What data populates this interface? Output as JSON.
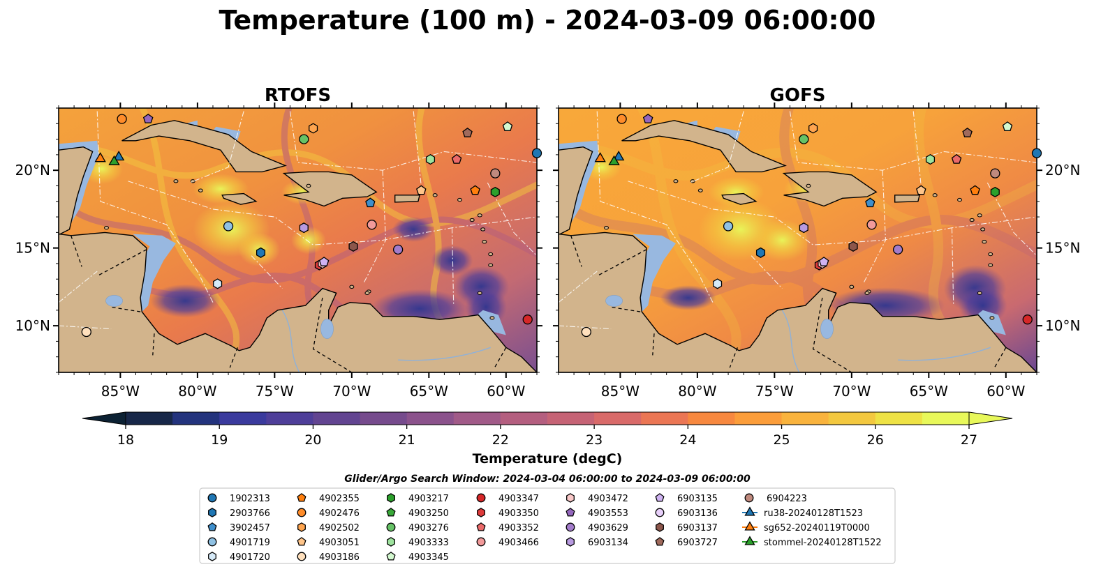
{
  "title": "Temperature (100 m) - 2024-03-09 06:00:00",
  "panels": [
    {
      "title": "RTOFS",
      "id": "rtofs"
    },
    {
      "title": "GOFS",
      "id": "gofs"
    }
  ],
  "chart_data": {
    "type": "heatmap",
    "title": "Temperature (100 m) - 2024-03-09 06:00:00",
    "xlim": [
      -89,
      -58
    ],
    "ylim": [
      7,
      24
    ],
    "x_ticks": [
      -85,
      -80,
      -75,
      -70,
      -65,
      -60
    ],
    "x_tick_labels": [
      "85°W",
      "80°W",
      "75°W",
      "70°W",
      "65°W",
      "60°W"
    ],
    "y_ticks": [
      10,
      15,
      20
    ],
    "y_tick_labels": [
      "10°N",
      "15°N",
      "20°N"
    ],
    "colorbar": {
      "label": "Temperature (degC)",
      "min": 18,
      "max": 27,
      "ticks": [
        18,
        19,
        20,
        21,
        22,
        23,
        24,
        25,
        26,
        27
      ],
      "extend": "both"
    },
    "colors": {
      "ocean_deep": "#0b2035",
      "land": "#d2b48c",
      "shallow": "#98b8e0",
      "cmap": [
        "#0c2133",
        "#172748",
        "#23337d",
        "#3a3a9d",
        "#4e3e99",
        "#624491",
        "#764b8d",
        "#8b528c",
        "#a15a88",
        "#b45e7f",
        "#c66375",
        "#d96a69",
        "#eb7654",
        "#f7883f",
        "#fb9d3a",
        "#f9b33d",
        "#f3c83f",
        "#eee245",
        "#e8f85a"
      ]
    },
    "legend": {
      "title": "Glider/Argo Search Window: 2024-03-04 06:00:00 to 2024-03-09 06:00:00",
      "columns": [
        [
          {
            "label": "1902313",
            "marker": "circle",
            "color": "#1f77b4"
          },
          {
            "label": "2903766",
            "marker": "hexagon",
            "color": "#1f77b4"
          },
          {
            "label": "3902457",
            "marker": "pentagon",
            "color": "#3f8fcc"
          },
          {
            "label": "4901719",
            "marker": "circle",
            "color": "#8fc1e3"
          },
          {
            "label": "4901720",
            "marker": "hexagon",
            "color": "#d6eaf8"
          }
        ],
        [
          {
            "label": "4902355",
            "marker": "pentagon",
            "color": "#ff7f0e"
          },
          {
            "label": "4902476",
            "marker": "circle",
            "color": "#ff8c2a"
          },
          {
            "label": "4902502",
            "marker": "hexagon",
            "color": "#ffa54f"
          },
          {
            "label": "4903051",
            "marker": "pentagon",
            "color": "#ffc58a"
          },
          {
            "label": "4903186",
            "marker": "circle",
            "color": "#ffe0bd"
          }
        ],
        [
          {
            "label": "4903217",
            "marker": "hexagon",
            "color": "#2ca02c"
          },
          {
            "label": "4903250",
            "marker": "pentagon",
            "color": "#38a838"
          },
          {
            "label": "4903276",
            "marker": "circle",
            "color": "#66c266"
          },
          {
            "label": "4903333",
            "marker": "hexagon",
            "color": "#9ee39e"
          },
          {
            "label": "4903345",
            "marker": "pentagon",
            "color": "#d4f9d0"
          }
        ],
        [
          {
            "label": "4903347",
            "marker": "circle",
            "color": "#d62728"
          },
          {
            "label": "4903350",
            "marker": "hexagon",
            "color": "#de3b3b"
          },
          {
            "label": "4903352",
            "marker": "pentagon",
            "color": "#eb6a6a"
          },
          {
            "label": "4903466",
            "marker": "circle",
            "color": "#f29a9a"
          }
        ],
        [
          {
            "label": "4903472",
            "marker": "hexagon",
            "color": "#f9c8c8"
          },
          {
            "label": "4903553",
            "marker": "pentagon",
            "color": "#9467bd"
          },
          {
            "label": "4903629",
            "marker": "circle",
            "color": "#a37ccb"
          },
          {
            "label": "6903134",
            "marker": "hexagon",
            "color": "#b89ae0"
          }
        ],
        [
          {
            "label": "6903135",
            "marker": "pentagon",
            "color": "#cfb3f2"
          },
          {
            "label": "6903136",
            "marker": "circle",
            "color": "#e8d0fa"
          },
          {
            "label": "6903137",
            "marker": "hexagon",
            "color": "#8c564b"
          },
          {
            "label": "6903727",
            "marker": "pentagon",
            "color": "#a06a5c"
          }
        ],
        [
          {
            "label": "6904223",
            "marker": "circle",
            "color": "#c08a7e"
          },
          {
            "label": "ru38-20240128T1523",
            "marker": "triangle-line",
            "color": "#1f77b4"
          },
          {
            "label": "sg652-20240119T0000",
            "marker": "triangle-line",
            "color": "#ff7f0e"
          },
          {
            "label": "stommel-20240128T1522",
            "marker": "triangle-line",
            "color": "#2ca02c"
          }
        ]
      ]
    },
    "platforms": [
      {
        "id": "1902313",
        "marker": "circle",
        "color": "#1f77b4",
        "lon": -58,
        "lat": 21.1
      },
      {
        "id": "2903766",
        "marker": "hexagon",
        "color": "#1f77b4",
        "lon": -75.9,
        "lat": 14.7
      },
      {
        "id": "3902457",
        "marker": "pentagon",
        "color": "#3f8fcc",
        "lon": -68.8,
        "lat": 17.9
      },
      {
        "id": "4901719",
        "marker": "circle",
        "color": "#8fc1e3",
        "lon": -78,
        "lat": 16.4
      },
      {
        "id": "4901720",
        "marker": "hexagon",
        "color": "#d6eaf8",
        "lon": -78.7,
        "lat": 12.7
      },
      {
        "id": "4902355",
        "marker": "pentagon",
        "color": "#ff7f0e",
        "lon": -62,
        "lat": 18.7
      },
      {
        "id": "4902476",
        "marker": "circle",
        "color": "#ff8c2a",
        "lon": -84.9,
        "lat": 23.3
      },
      {
        "id": "4902502",
        "marker": "hexagon",
        "color": "#ffa54f",
        "lon": -72.5,
        "lat": 22.7
      },
      {
        "id": "4903051",
        "marker": "pentagon",
        "color": "#ffc58a",
        "lon": -65.5,
        "lat": 18.7
      },
      {
        "id": "4903186",
        "marker": "circle",
        "color": "#ffe0bd",
        "lon": -87.2,
        "lat": 9.6
      },
      {
        "id": "4903217",
        "marker": "hexagon",
        "color": "#2ca02c",
        "lon": -60.7,
        "lat": 18.6
      },
      {
        "id": "4903276",
        "marker": "circle",
        "color": "#66c266",
        "lon": -73.1,
        "lat": 22
      },
      {
        "id": "4903333",
        "marker": "hexagon",
        "color": "#9ee39e",
        "lon": -64.9,
        "lat": 20.7
      },
      {
        "id": "4903345",
        "marker": "pentagon",
        "color": "#d4f9d0",
        "lon": -59.9,
        "lat": 22.8
      },
      {
        "id": "4903347",
        "marker": "circle",
        "color": "#d62728",
        "lon": -58.6,
        "lat": 10.4
      },
      {
        "id": "4903350",
        "marker": "hexagon",
        "color": "#de3b3b",
        "lon": -72.1,
        "lat": 13.9
      },
      {
        "id": "4903352",
        "marker": "pentagon",
        "color": "#eb6a6a",
        "lon": -63.2,
        "lat": 20.7
      },
      {
        "id": "4903466",
        "marker": "circle",
        "color": "#f29a9a",
        "lon": -68.7,
        "lat": 16.5
      },
      {
        "id": "4903472",
        "marker": "hexagon",
        "color": "#f9c8c8",
        "lon": -71.9,
        "lat": 14
      },
      {
        "id": "4903553",
        "marker": "pentagon",
        "color": "#9467bd",
        "lon": -83.2,
        "lat": 23.3
      },
      {
        "id": "4903629",
        "marker": "circle",
        "color": "#a37ccb",
        "lon": -67,
        "lat": 14.9
      },
      {
        "id": "6903134",
        "marker": "hexagon",
        "color": "#b89ae0",
        "lon": -73.1,
        "lat": 16.3
      },
      {
        "id": "6903135",
        "marker": "pentagon",
        "color": "#cfb3f2",
        "lon": -71.8,
        "lat": 14.1
      },
      {
        "id": "6903137",
        "marker": "hexagon",
        "color": "#8c564b",
        "lon": -69.9,
        "lat": 15.1
      },
      {
        "id": "6903727",
        "marker": "pentagon",
        "color": "#a06a5c",
        "lon": -62.5,
        "lat": 22.4
      },
      {
        "id": "6904223",
        "marker": "circle",
        "color": "#c08a7e",
        "lon": -60.7,
        "lat": 19.8
      },
      {
        "id": "ru38-20240128T1523",
        "marker": "triangle",
        "color": "#1f77b4",
        "lon": -85.1,
        "lat": 20.9
      },
      {
        "id": "sg652-20240119T0000",
        "marker": "triangle",
        "color": "#ff7f0e",
        "lon": -86.3,
        "lat": 20.8
      },
      {
        "id": "stommel-20240128T1522",
        "marker": "triangle",
        "color": "#2ca02c",
        "lon": -85.4,
        "lat": 20.6
      }
    ]
  }
}
